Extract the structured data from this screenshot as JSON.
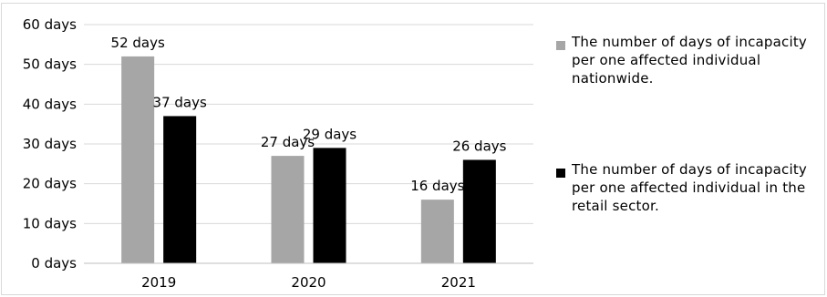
{
  "chart_data": {
    "type": "bar",
    "categories": [
      "2019",
      "2020",
      "2021"
    ],
    "series": [
      {
        "name": "The number of days of incapacity per one affected individual nationwide.",
        "values": [
          52,
          27,
          16
        ],
        "labels": [
          "52 days",
          "27 days",
          "16 days"
        ],
        "color": "#a6a6a6"
      },
      {
        "name": "The number of days of incapacity per one affected individual in the retail sector.",
        "values": [
          37,
          29,
          26
        ],
        "labels": [
          "37 days",
          "29 days",
          "26 days"
        ],
        "color": "#000000"
      }
    ],
    "ylim": [
      0,
      60
    ],
    "yticks": [
      0,
      10,
      20,
      30,
      40,
      50,
      60
    ],
    "ytick_labels": [
      "0 days",
      "10 days",
      "20 days",
      "30 days",
      "40 days",
      "50 days",
      "60 days"
    ],
    "title": "",
    "xlabel": "",
    "ylabel": "",
    "grid": true,
    "legend_position": "right",
    "colors": {
      "gridline": "#d9d9d9",
      "axis": "#bfbfbf",
      "text": "#000000"
    }
  }
}
